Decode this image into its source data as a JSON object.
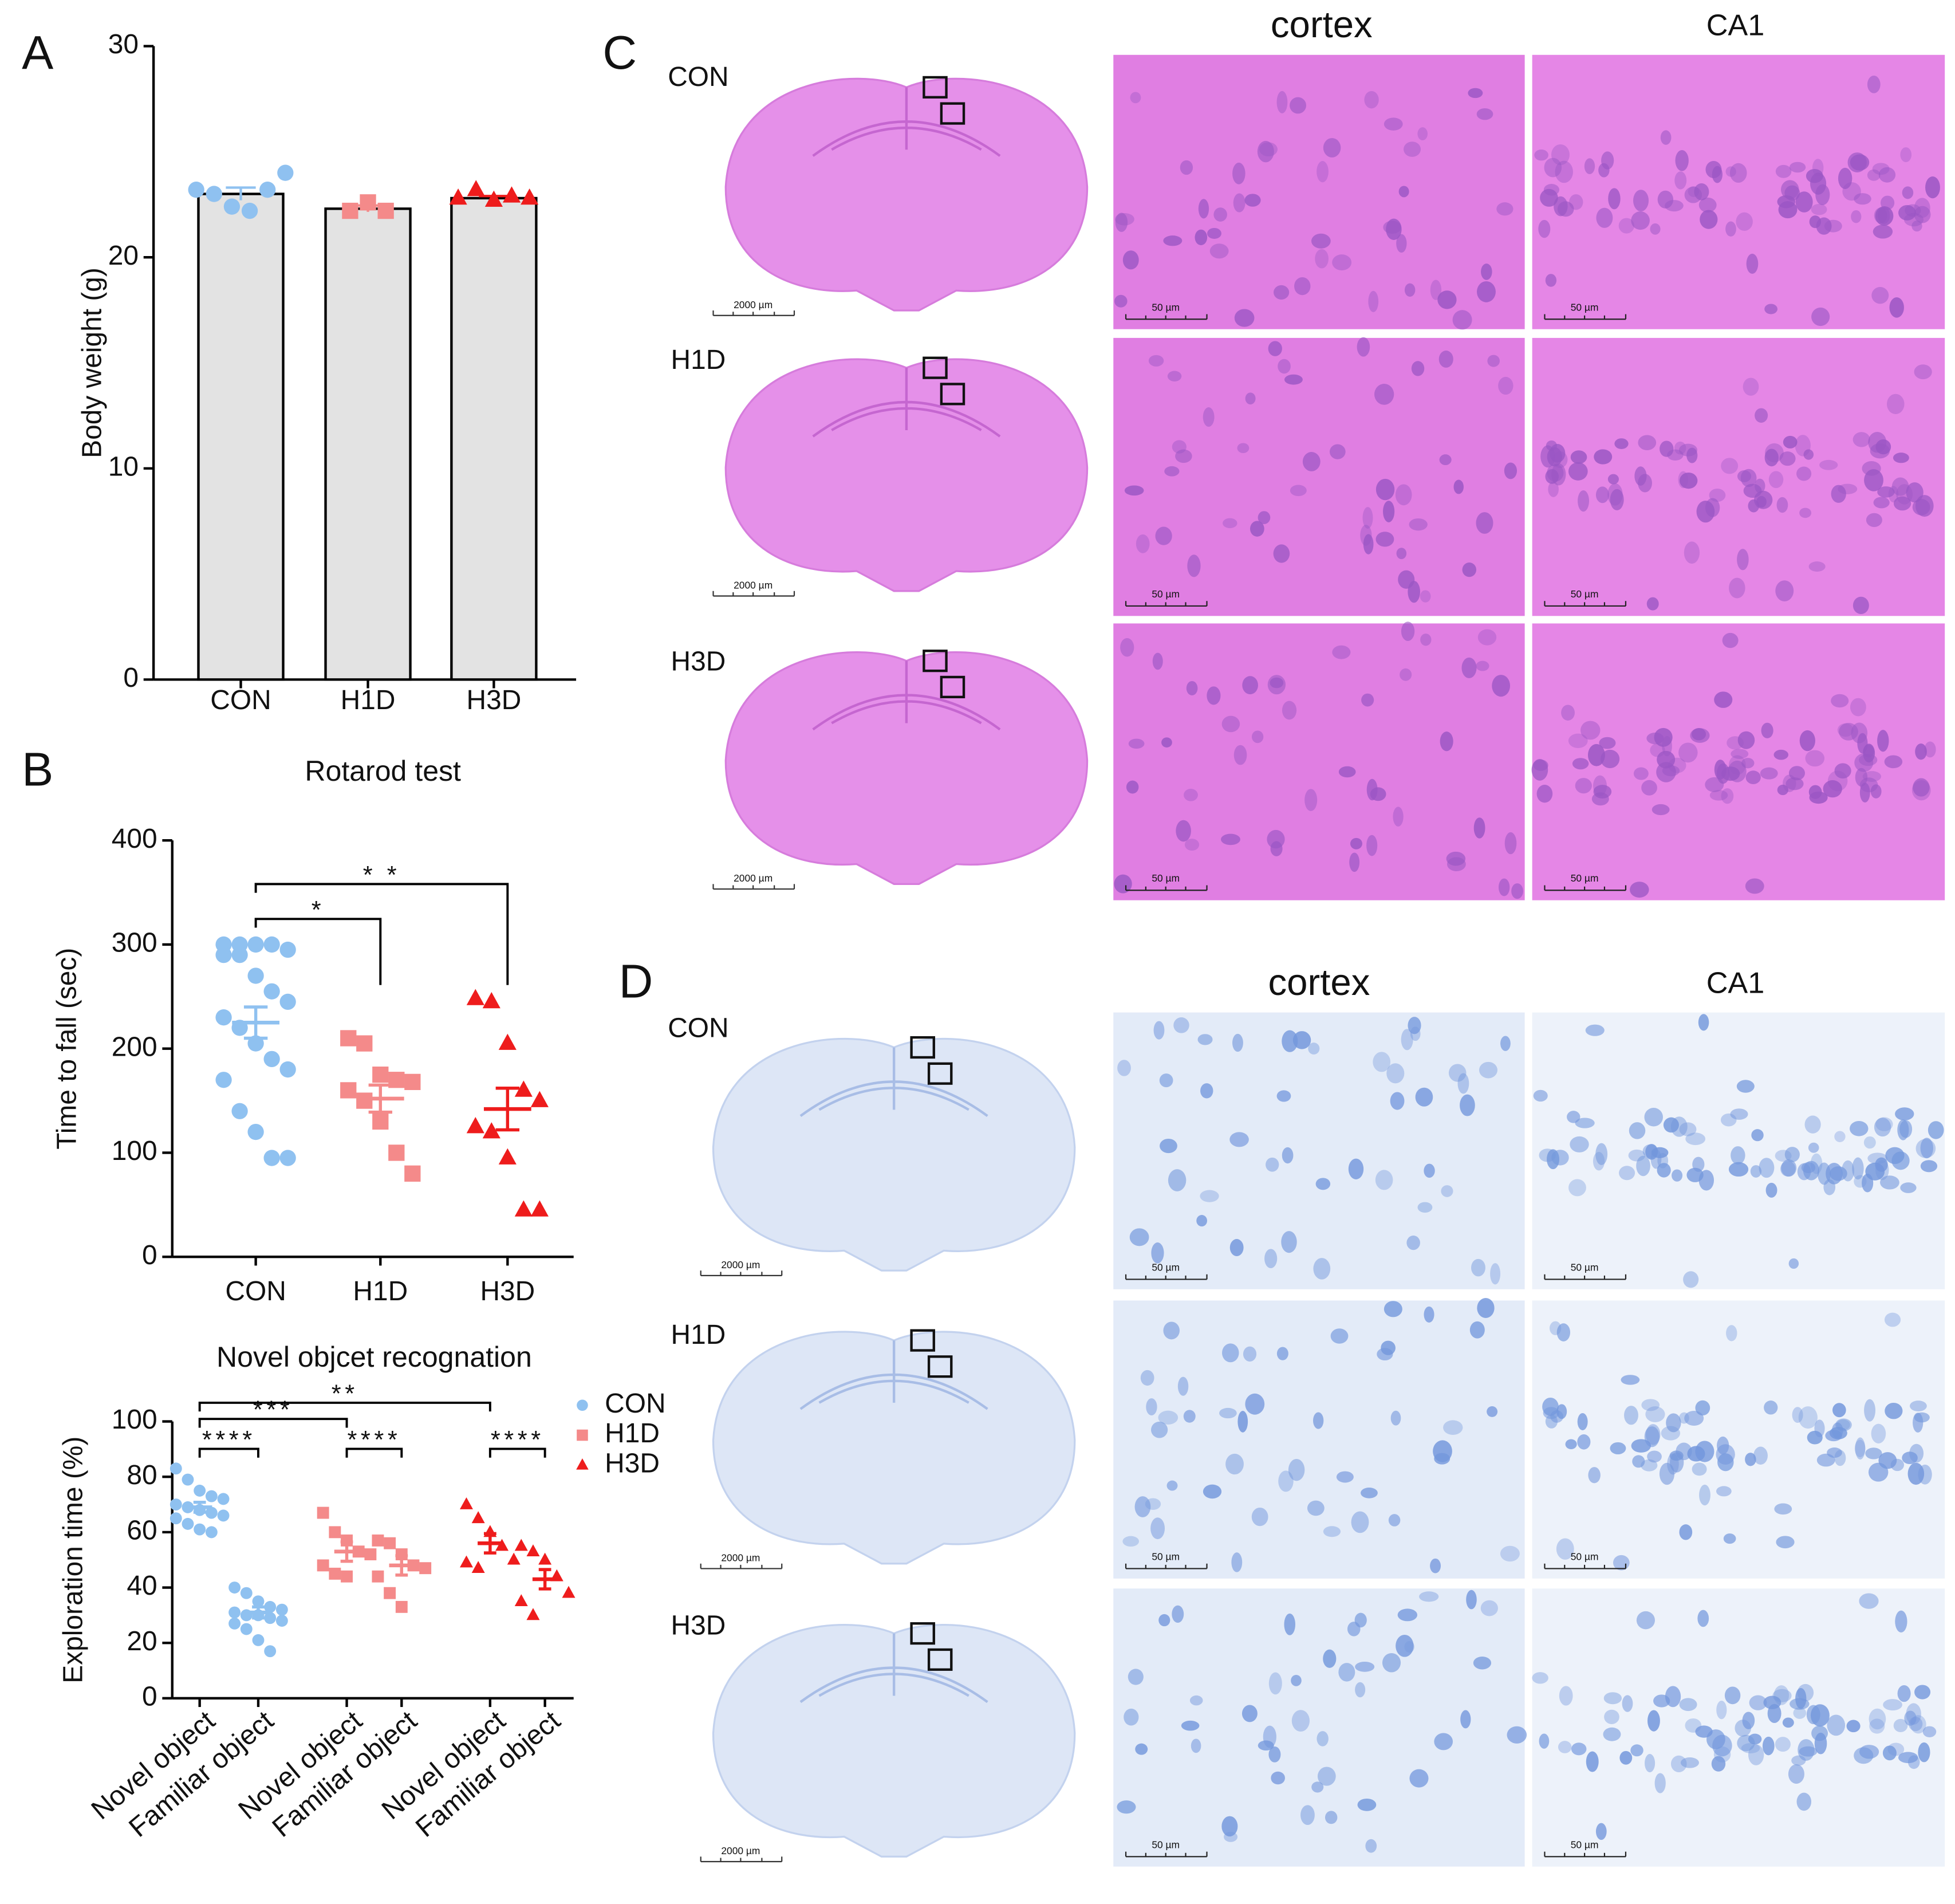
{
  "chart_data": [
    {
      "type": "bar",
      "label": "A",
      "ylabel": "Body weight (g)",
      "categories": [
        "CON",
        "H1D",
        "H3D"
      ],
      "values": [
        23.0,
        22.3,
        22.8
      ],
      "errors": [
        0.3,
        0.15,
        0.1
      ],
      "points": [
        [
          23.2,
          23.0,
          22.4,
          22.2,
          23.2,
          24.0
        ],
        [
          22.2,
          22.6,
          22.2
        ],
        [
          22.8,
          23.2,
          22.7,
          22.9,
          22.8
        ]
      ],
      "colors": [
        "#8fc1f0",
        "#f48a8a",
        "#ee1c1c"
      ],
      "markers": [
        "circle",
        "square",
        "triangle"
      ],
      "bar_color": "#e3e3e3",
      "ylim": [
        0,
        30
      ],
      "yticks": [
        0,
        10,
        20,
        30
      ]
    },
    {
      "type": "dot",
      "label": "B",
      "title": "Rotarod test",
      "ylabel": "Time to fall (sec)",
      "categories": [
        "CON",
        "H1D",
        "H3D"
      ],
      "values": [
        225,
        152,
        142
      ],
      "errors": [
        15,
        13,
        20
      ],
      "points": [
        [
          300,
          300,
          300,
          300,
          295,
          290,
          290,
          270,
          255,
          245,
          230,
          220,
          205,
          190,
          180,
          170,
          140,
          120,
          95,
          95
        ],
        [
          210,
          205,
          175,
          170,
          168,
          160,
          150,
          130,
          100,
          80
        ],
        [
          248,
          245,
          205,
          160,
          150,
          125,
          120,
          95,
          45,
          45
        ]
      ],
      "colors": [
        "#8fc1f0",
        "#f48a8a",
        "#ee1c1c"
      ],
      "markers": [
        "circle",
        "square",
        "triangle"
      ],
      "ylim": [
        0,
        400
      ],
      "yticks": [
        0,
        100,
        200,
        300,
        400
      ],
      "comparisons": [
        {
          "groups": [
            0,
            1
          ],
          "label": "*"
        },
        {
          "groups": [
            0,
            2
          ],
          "label": "* *"
        }
      ]
    },
    {
      "type": "dot",
      "title": "Novel objcet recognation",
      "ylabel": "Exploration time (%)",
      "categories": [
        "Novel object",
        "Familiar object",
        "Novel object",
        "Familiar object",
        "Novel object",
        "Familiar object"
      ],
      "values": [
        69,
        31,
        53,
        48,
        56,
        43
      ],
      "errors": [
        1.8,
        2,
        3.5,
        3.5,
        3.5,
        3.5
      ],
      "points": [
        [
          83,
          79,
          75,
          73,
          72,
          70,
          69,
          68,
          67,
          66,
          65,
          63,
          61,
          60
        ],
        [
          40,
          38,
          35,
          33,
          32,
          31,
          30,
          30,
          29,
          28,
          27,
          25,
          21,
          17
        ],
        [
          67,
          60,
          57,
          53,
          52,
          48,
          45,
          44
        ],
        [
          57,
          56,
          52,
          48,
          47,
          44,
          38,
          33
        ],
        [
          70,
          65,
          60,
          55,
          50,
          49,
          47
        ],
        [
          55,
          53,
          50,
          44,
          38,
          35,
          30
        ]
      ],
      "colors": [
        "#8fc1f0",
        "#8fc1f0",
        "#f48a8a",
        "#f48a8a",
        "#ee1c1c",
        "#ee1c1c"
      ],
      "markers": [
        "circle",
        "circle",
        "square",
        "square",
        "triangle",
        "triangle"
      ],
      "ylim": [
        0,
        100
      ],
      "yticks": [
        0,
        20,
        40,
        60,
        80,
        100
      ],
      "legend": [
        {
          "name": "CON",
          "color": "#8fc1f0",
          "marker": "circle"
        },
        {
          "name": "H1D",
          "color": "#f48a8a",
          "marker": "square"
        },
        {
          "name": "H3D",
          "color": "#ee1c1c",
          "marker": "triangle"
        }
      ],
      "comparisons": [
        {
          "groups": [
            0,
            1
          ],
          "label": "****"
        },
        {
          "groups": [
            2,
            3
          ],
          "label": "****"
        },
        {
          "groups": [
            4,
            5
          ],
          "label": "****"
        },
        {
          "groups": [
            0,
            2
          ],
          "label": "***"
        },
        {
          "groups": [
            0,
            4
          ],
          "label": "**"
        }
      ]
    }
  ],
  "histology": [
    {
      "label": "C",
      "columns": [
        "cortex",
        "CA1"
      ],
      "rows": [
        "CON",
        "H1D",
        "H3D"
      ],
      "whole_scale": "2000 µm",
      "zoom_scale": "50 µm"
    },
    {
      "label": "D",
      "columns": [
        "cortex",
        "CA1"
      ],
      "rows": [
        "CON",
        "H1D",
        "H3D"
      ],
      "whole_scale": "2000 µm",
      "zoom_scale": "50 µm"
    }
  ]
}
